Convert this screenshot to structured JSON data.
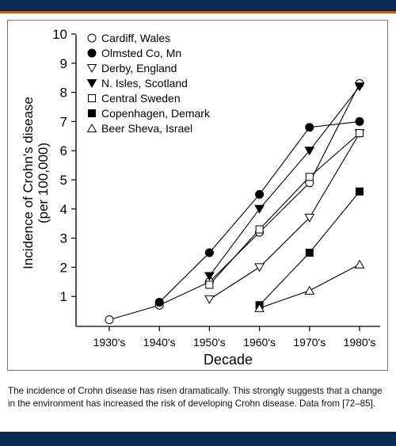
{
  "caption": "The incidence of Crohn disease has risen dramatically. This strongly suggests that a change in the environment has increased the risk of developing Crohn disease. Data from [72–85].",
  "chart_data": {
    "type": "line",
    "xlabel": "Decade",
    "ylabel_line1": "Incidence of Crohn's disease",
    "ylabel_line2": "(per 100,000)",
    "categories": [
      "1930's",
      "1940's",
      "1950's",
      "1960's",
      "1970's",
      "1980's"
    ],
    "ylim": [
      0,
      10
    ],
    "yticks": [
      "1",
      "2",
      "3",
      "4",
      "5",
      "6",
      "7",
      "8",
      "9",
      "10"
    ],
    "grid": false,
    "legend_position": "top-left",
    "series": [
      {
        "name": "Cardiff, Wales",
        "marker": "circle-open",
        "points": [
          [
            0,
            0.2
          ],
          [
            1,
            0.7
          ],
          [
            2,
            1.5
          ],
          [
            3,
            3.2
          ],
          [
            4,
            4.9
          ],
          [
            5,
            8.3
          ]
        ]
      },
      {
        "name": "Olmsted Co, Mn",
        "marker": "circle-filled",
        "points": [
          [
            1,
            0.8
          ],
          [
            2,
            2.5
          ],
          [
            3,
            4.5
          ],
          [
            4,
            6.8
          ],
          [
            5,
            7.0
          ]
        ]
      },
      {
        "name": "Derby, England",
        "marker": "triangle-down-open",
        "points": [
          [
            2,
            0.9
          ],
          [
            3,
            2.0
          ],
          [
            4,
            3.7
          ],
          [
            5,
            6.6
          ]
        ]
      },
      {
        "name": "N. Isles, Scotland",
        "marker": "triangle-down-filled",
        "points": [
          [
            2,
            1.7
          ],
          [
            3,
            4.0
          ],
          [
            4,
            6.0
          ],
          [
            5,
            8.2
          ]
        ]
      },
      {
        "name": "Central Sweden",
        "marker": "square-open",
        "points": [
          [
            2,
            1.4
          ],
          [
            3,
            3.3
          ],
          [
            4,
            5.1
          ],
          [
            5,
            6.6
          ]
        ]
      },
      {
        "name": "Copenhagen, Demark",
        "marker": "square-filled",
        "points": [
          [
            3,
            0.7
          ],
          [
            4,
            2.5
          ],
          [
            5,
            4.6
          ]
        ]
      },
      {
        "name": "Beer Sheva, Israel",
        "marker": "triangle-up-open",
        "points": [
          [
            3,
            0.6
          ],
          [
            4,
            1.2
          ],
          [
            5,
            2.1
          ]
        ]
      }
    ]
  }
}
